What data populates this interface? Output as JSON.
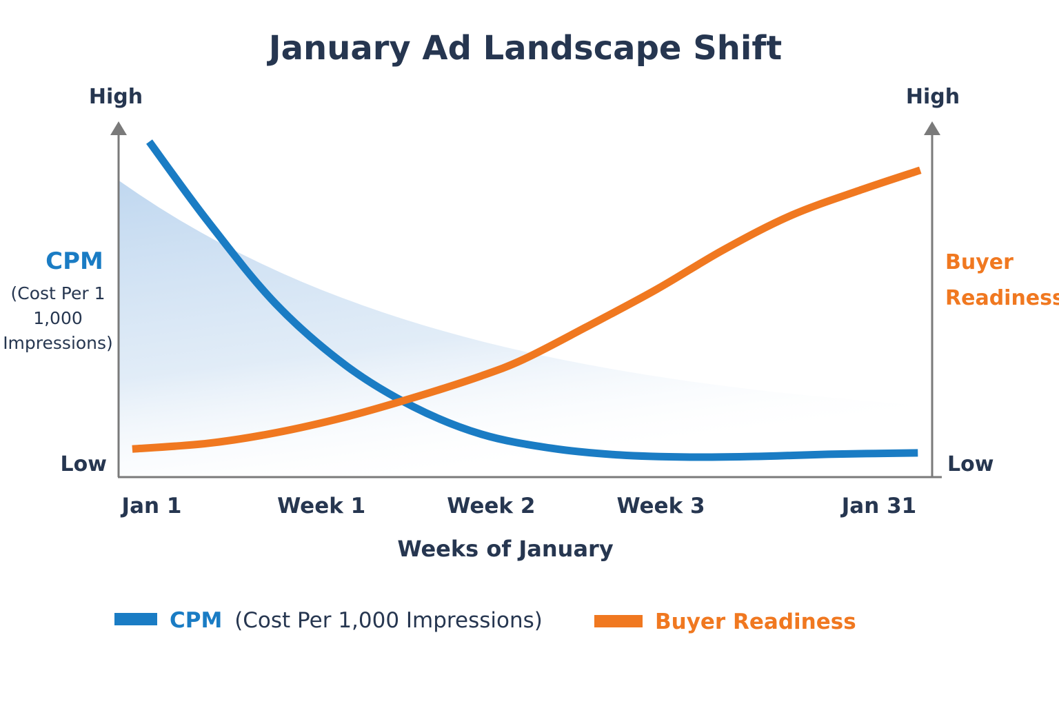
{
  "chart_data": {
    "type": "line",
    "title": "January Ad Landscape Shift",
    "xlabel": "Weeks of January",
    "x_ticks": [
      {
        "label": "Jan 1",
        "day": 1
      },
      {
        "label": "Week 1",
        "day": 8
      },
      {
        "label": "Week 2",
        "day": 15
      },
      {
        "label": "Week 3",
        "day": 22
      },
      {
        "label": "Jan 31",
        "day": 31
      }
    ],
    "y_left": {
      "label": "CPM",
      "sublabel": [
        "(Cost Per 1",
        "1,000",
        "Impressions)"
      ],
      "high": "High",
      "low": "Low",
      "ylim": [
        0,
        100
      ],
      "color": "#1a7cc4"
    },
    "y_right": {
      "label": [
        "Buyer",
        "Readiness"
      ],
      "high": "High",
      "low": "Low",
      "ylim": [
        0,
        100
      ],
      "color": "#f07820"
    },
    "xlim": [
      1,
      31
    ],
    "grid": false,
    "series": [
      {
        "name": "CPM (Cost Per 1,000 Impressions)",
        "axis": "left",
        "color": "#1a7cc4",
        "x": [
          0.9,
          3.3,
          6.1,
          9.0,
          11.8,
          14.6,
          17.5,
          20.3,
          23.2,
          26.0,
          28.9,
          32.6
        ],
        "y": [
          95,
          72.5,
          49,
          31.4,
          19.6,
          11.8,
          7.8,
          5.9,
          5.3,
          5.5,
          6.1,
          6.5
        ]
      },
      {
        "name": "Buyer Readiness",
        "axis": "right",
        "color": "#f07820",
        "x": [
          0.2,
          3.3,
          6.1,
          9.0,
          11.8,
          14.6,
          16.4,
          18.9,
          21.8,
          24.6,
          27.4,
          30.3,
          32.7
        ],
        "y": [
          7.6,
          9.2,
          12.2,
          16.7,
          22.2,
          28.4,
          33.3,
          42.2,
          52.9,
          64.3,
          74.1,
          81.4,
          86.9
        ]
      }
    ],
    "shaded_area": {
      "color": "#a9c9e8",
      "x": [
        0,
        33.3
      ],
      "y": [
        84,
        12.7
      ]
    },
    "legend": {
      "placement": "bottom",
      "items": [
        {
          "bold": "CPM",
          "rest": "(Cost Per 1,000 Impressions)",
          "color": "#1a7cc4"
        },
        {
          "bold": "Buyer Readiness",
          "rest": "",
          "color": "#f07820"
        }
      ]
    }
  }
}
